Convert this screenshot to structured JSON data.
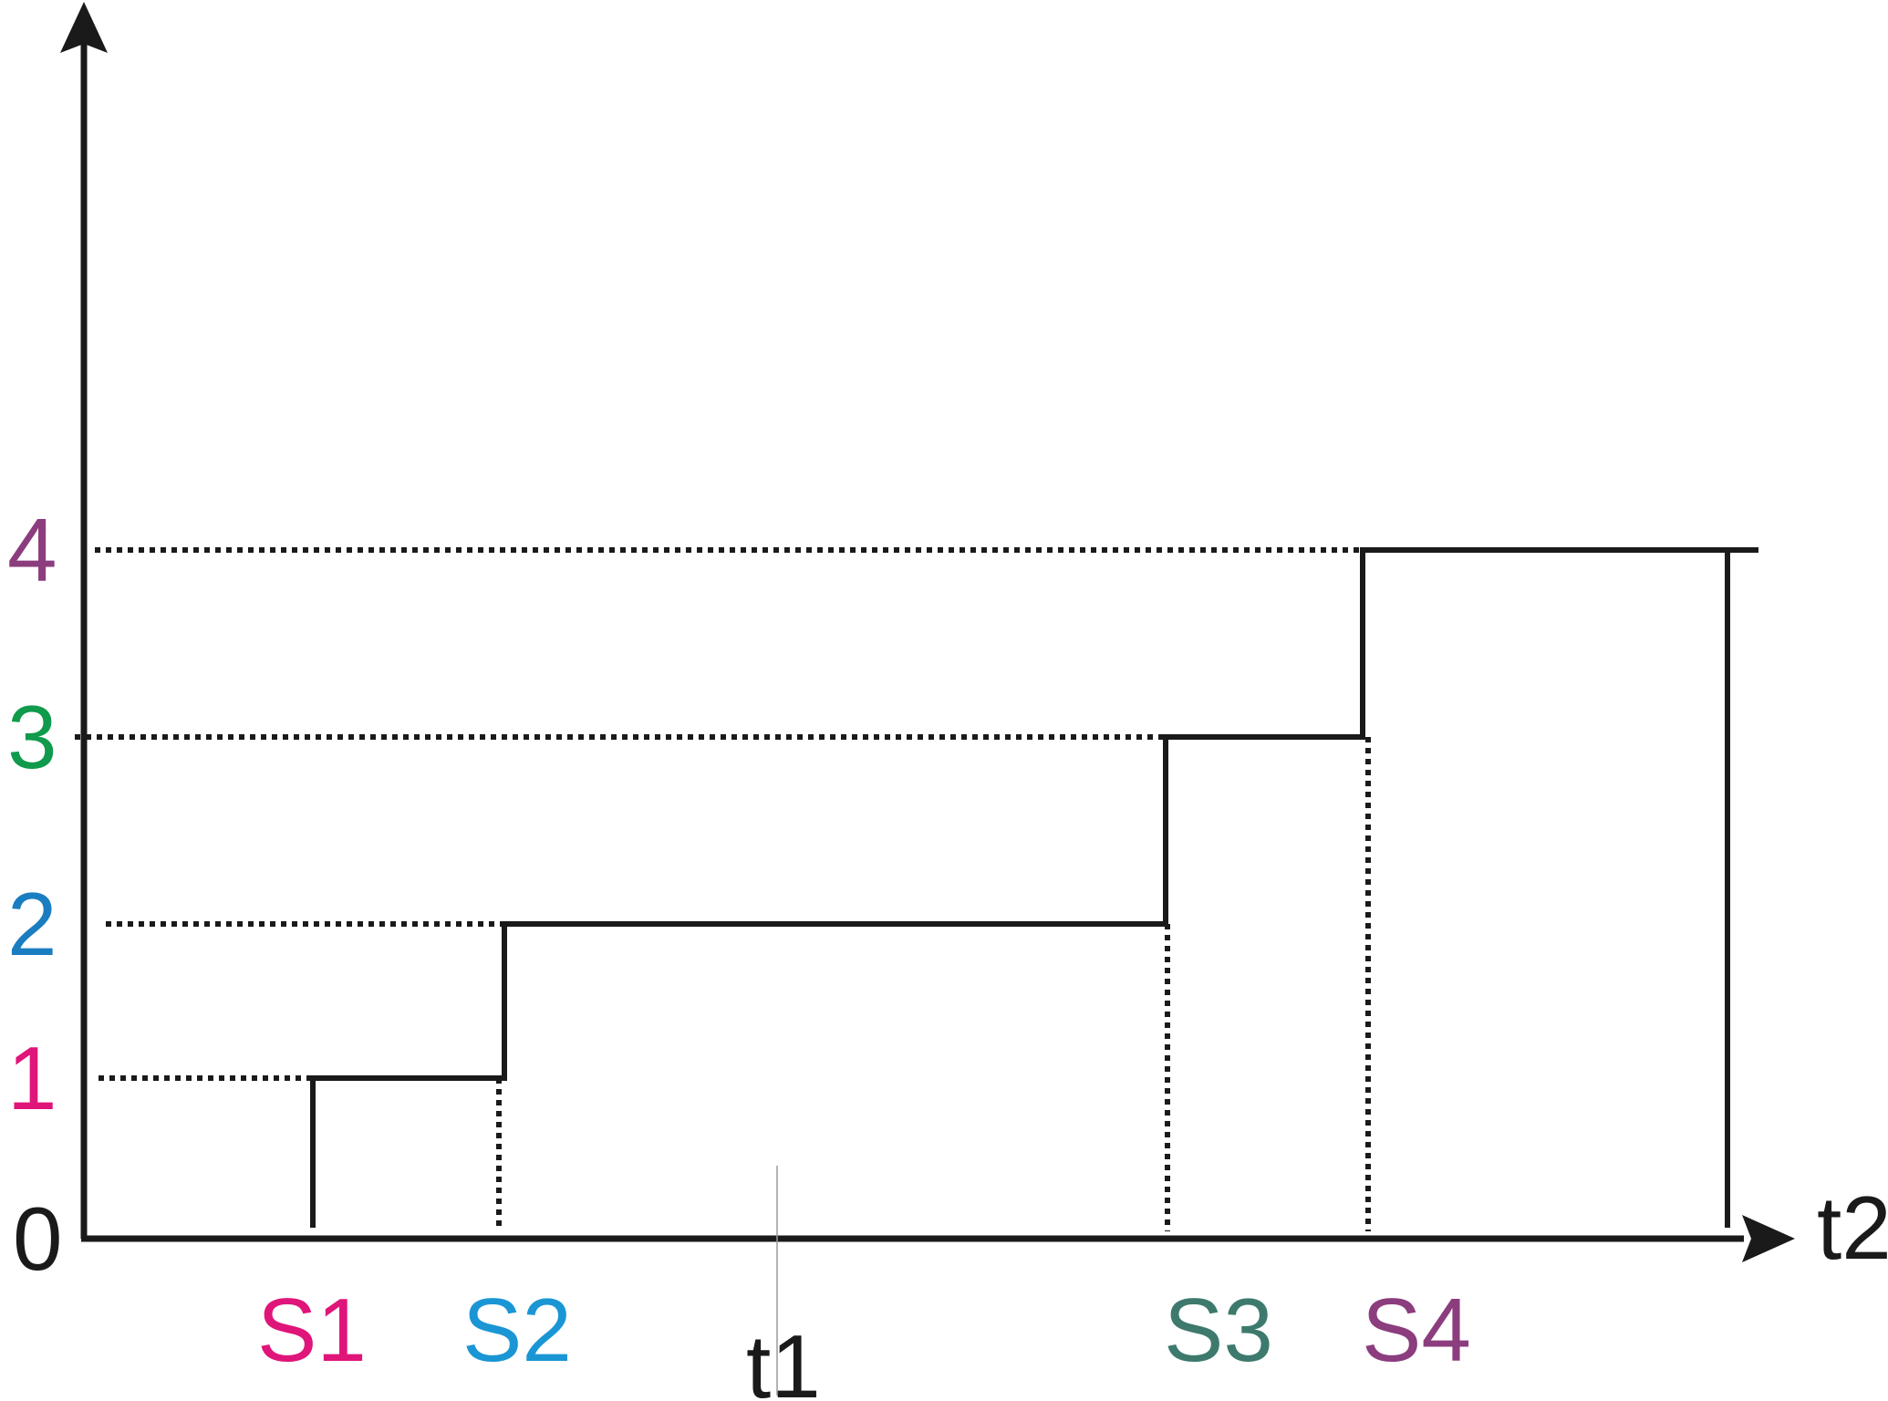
{
  "chart_data": {
    "type": "line",
    "subtype": "step",
    "title": "",
    "xlabel": "t2",
    "ylabel": "",
    "ylim": [
      0,
      4
    ],
    "y_ticks": [
      {
        "value": 0,
        "label": "0",
        "color": "#1a1a1a"
      },
      {
        "value": 1,
        "label": "1",
        "color": "#e0157a"
      },
      {
        "value": 2,
        "label": "2",
        "color": "#1a7dc0"
      },
      {
        "value": 3,
        "label": "3",
        "color": "#0f9a4c"
      },
      {
        "value": 4,
        "label": "4",
        "color": "#8b3d7e"
      }
    ],
    "markers": [
      {
        "label": "S1",
        "color": "#e0157a"
      },
      {
        "label": "S2",
        "color": "#1a96d4"
      },
      {
        "label": "S3",
        "color": "#3d7a6d"
      },
      {
        "label": "S4",
        "color": "#8b3d7e"
      }
    ],
    "midpoint_label": "t1",
    "steps": [
      {
        "from": "S1",
        "to": "S2",
        "value": 1
      },
      {
        "from": "S2",
        "to": "S3",
        "value": 2
      },
      {
        "from": "S3",
        "to": "S4",
        "value": 3
      },
      {
        "from": "S4",
        "to": "end",
        "value": 4
      }
    ],
    "grid": false,
    "axis_color": "#1a1a1a",
    "line_color": "#1a1a1a"
  }
}
